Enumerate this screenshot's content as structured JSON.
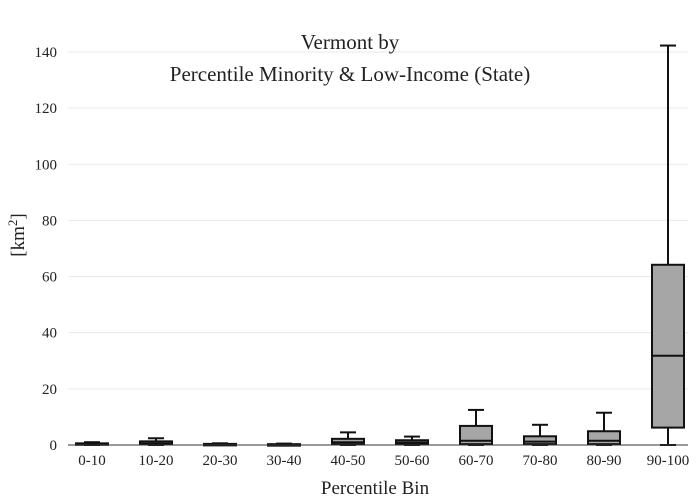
{
  "chart_data": {
    "type": "box",
    "title": "Vermont  by",
    "subtitle": "Percentile Minority & Low-Income (State)",
    "xlabel": "Percentile Bin",
    "ylabel": "[km²]",
    "ylim": [
      0,
      145
    ],
    "yticks": [
      0,
      20,
      40,
      60,
      80,
      100,
      120,
      140
    ],
    "grid": true,
    "legend": "none",
    "colors": {
      "box_fill": "#a6a6a6",
      "stroke": "#111111"
    },
    "categories": [
      "0-10",
      "10-20",
      "20-30",
      "30-40",
      "40-50",
      "50-60",
      "60-70",
      "70-80",
      "80-90",
      "90-100"
    ],
    "boxes": [
      {
        "min": 0,
        "q1": 0.1,
        "median": 0.3,
        "q3": 0.6,
        "max": 1.0
      },
      {
        "min": 0,
        "q1": 0.2,
        "median": 0.6,
        "q3": 1.3,
        "max": 2.4
      },
      {
        "min": 0,
        "q1": 0.05,
        "median": 0.2,
        "q3": 0.4,
        "max": 0.6
      },
      {
        "min": 0,
        "q1": 0.05,
        "median": 0.15,
        "q3": 0.3,
        "max": 0.5
      },
      {
        "min": 0,
        "q1": 0.3,
        "median": 1.0,
        "q3": 2.2,
        "max": 4.5
      },
      {
        "min": 0,
        "q1": 0.3,
        "median": 0.9,
        "q3": 1.7,
        "max": 3.0
      },
      {
        "min": 0,
        "q1": 0.3,
        "median": 1.5,
        "q3": 6.8,
        "max": 12.5
      },
      {
        "min": 0,
        "q1": 0.3,
        "median": 1.2,
        "q3": 3.1,
        "max": 7.2
      },
      {
        "min": 0,
        "q1": 0.3,
        "median": 1.5,
        "q3": 4.9,
        "max": 11.5
      },
      {
        "min": 0,
        "q1": 6.2,
        "median": 31.8,
        "q3": 64.2,
        "max": 142.3
      }
    ]
  }
}
